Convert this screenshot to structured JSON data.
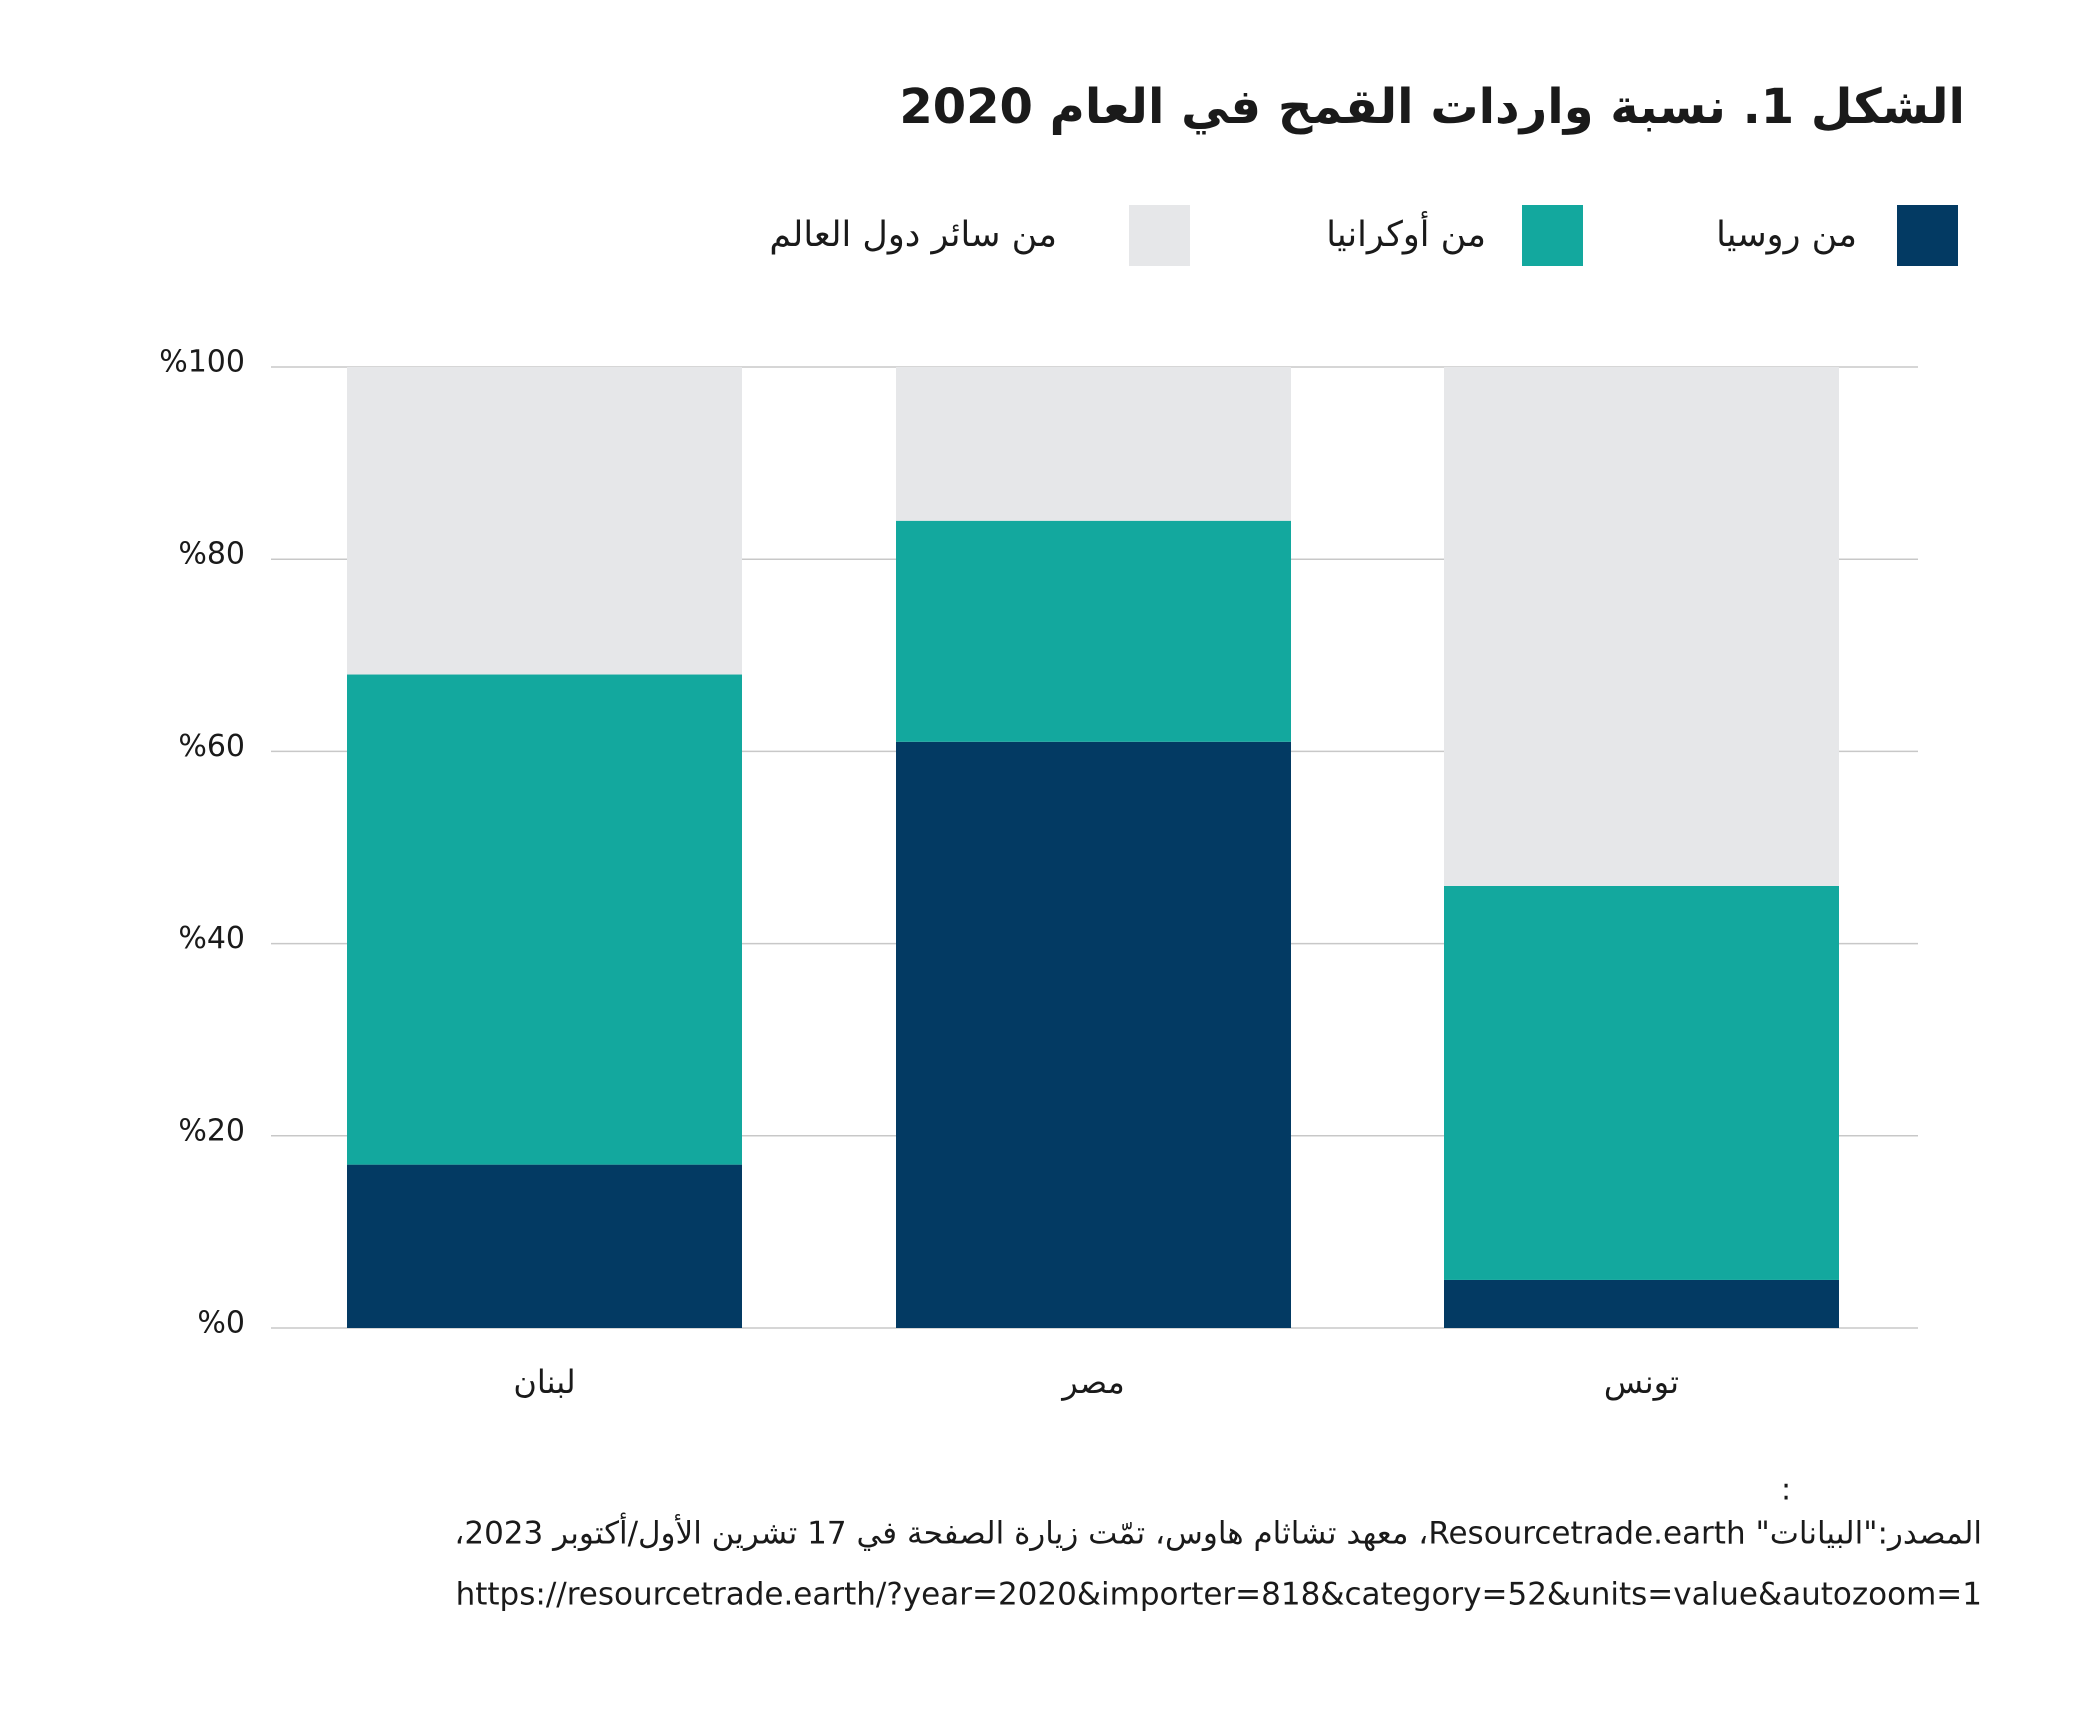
{
  "chart_data": {
    "type": "stacked_bar",
    "title": "الشكل 1. نسبة واردات القمح في العام 2020",
    "categories": [
      "لبنان",
      "مصر",
      "تونس"
    ],
    "series": [
      {
        "name": "من روسيا",
        "color": "#033a63",
        "values": [
          17,
          61,
          5
        ]
      },
      {
        "name": "من أوكرانيا",
        "color": "#13a89e",
        "values": [
          51,
          23,
          41
        ]
      },
      {
        "name": "من سائر دول العالم",
        "color": "#e6e7e9",
        "values": [
          32,
          16,
          54
        ]
      }
    ],
    "ylim": [
      0,
      100
    ],
    "yticks": [
      {
        "value": 0,
        "label": "%0"
      },
      {
        "value": 20,
        "label": "%20"
      },
      {
        "value": 40,
        "label": "%40"
      },
      {
        "value": 60,
        "label": "%60"
      },
      {
        "value": 80,
        "label": "%80"
      },
      {
        "value": 100,
        "label": "%100"
      }
    ],
    "grid": true,
    "source_mark": ":",
    "source": [
      "المصدر:\"البيانات\" Resourcetrade.earth، معهد تشاثام هاوس، تمّت زيارة الصفحة في 17 تشرين الأول/أكتوبر 2023،",
      "https://resourcetrade.earth/?year=2020&importer=818&category=52&units=value&autozoom=1"
    ]
  }
}
